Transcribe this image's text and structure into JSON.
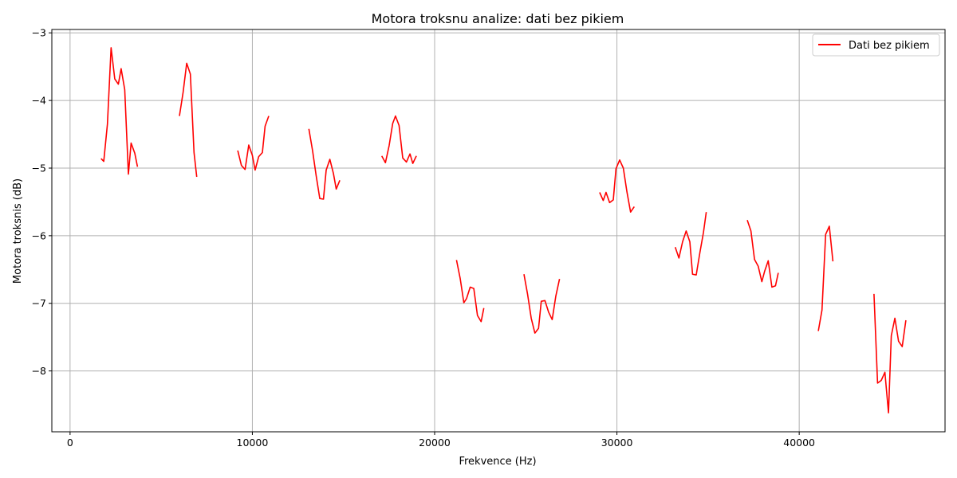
{
  "chart_data": {
    "type": "line",
    "title": "Motora troksnu analize: dati bez pikiem",
    "xlabel": "Frekvence (Hz)",
    "ylabel": "Motora troksnis (dB)",
    "xlim": [
      -1000,
      48000
    ],
    "ylim": [
      -8.9,
      -2.95
    ],
    "xticks": [
      0,
      10000,
      20000,
      30000,
      40000
    ],
    "xtick_labels": [
      "0",
      "10000",
      "20000",
      "30000",
      "40000"
    ],
    "yticks": [
      -8,
      -7,
      -6,
      -5,
      -4,
      -3
    ],
    "ytick_labels": [
      "−8",
      "−7",
      "−6",
      "−5",
      "−4",
      "−3"
    ],
    "grid": true,
    "legend": "top-right",
    "series": [
      {
        "name": "Dati bez pikiem",
        "color": "#ff0000",
        "segments": [
          [
            [
              1700,
              -4.86
            ],
            [
              1850,
              -4.9
            ],
            [
              2050,
              -4.35
            ],
            [
              2250,
              -3.22
            ],
            [
              2450,
              -3.68
            ],
            [
              2650,
              -3.76
            ],
            [
              2800,
              -3.53
            ],
            [
              3000,
              -3.84
            ],
            [
              3200,
              -5.09
            ],
            [
              3350,
              -4.63
            ],
            [
              3550,
              -4.78
            ],
            [
              3700,
              -4.98
            ]
          ],
          [
            [
              6000,
              -4.23
            ],
            [
              6200,
              -3.88
            ],
            [
              6400,
              -3.45
            ],
            [
              6600,
              -3.61
            ],
            [
              6800,
              -4.77
            ],
            [
              6950,
              -5.13
            ]
          ],
          [
            [
              9200,
              -4.74
            ],
            [
              9400,
              -4.96
            ],
            [
              9600,
              -5.02
            ],
            [
              9800,
              -4.66
            ],
            [
              10000,
              -4.81
            ],
            [
              10150,
              -5.03
            ],
            [
              10350,
              -4.83
            ],
            [
              10550,
              -4.77
            ],
            [
              10700,
              -4.38
            ],
            [
              10900,
              -4.23
            ]
          ],
          [
            [
              13100,
              -4.42
            ],
            [
              13300,
              -4.74
            ],
            [
              13500,
              -5.11
            ],
            [
              13700,
              -5.45
            ],
            [
              13900,
              -5.46
            ],
            [
              14050,
              -5.03
            ],
            [
              14250,
              -4.87
            ],
            [
              14450,
              -5.08
            ],
            [
              14600,
              -5.31
            ],
            [
              14800,
              -5.18
            ]
          ],
          [
            [
              17100,
              -4.82
            ],
            [
              17300,
              -4.92
            ],
            [
              17500,
              -4.67
            ],
            [
              17700,
              -4.34
            ],
            [
              17850,
              -4.23
            ],
            [
              18050,
              -4.37
            ],
            [
              18250,
              -4.85
            ],
            [
              18450,
              -4.91
            ],
            [
              18650,
              -4.79
            ],
            [
              18800,
              -4.93
            ],
            [
              19000,
              -4.82
            ]
          ],
          [
            [
              21200,
              -6.36
            ],
            [
              21400,
              -6.63
            ],
            [
              21600,
              -6.99
            ],
            [
              21750,
              -6.93
            ],
            [
              21950,
              -6.76
            ],
            [
              22150,
              -6.78
            ],
            [
              22350,
              -7.18
            ],
            [
              22550,
              -7.27
            ],
            [
              22700,
              -7.07
            ]
          ],
          [
            [
              24900,
              -6.57
            ],
            [
              25100,
              -6.87
            ],
            [
              25300,
              -7.22
            ],
            [
              25500,
              -7.44
            ],
            [
              25700,
              -7.37
            ],
            [
              25850,
              -6.97
            ],
            [
              26050,
              -6.96
            ],
            [
              26250,
              -7.13
            ],
            [
              26450,
              -7.24
            ],
            [
              26650,
              -6.89
            ],
            [
              26850,
              -6.64
            ]
          ],
          [
            [
              29050,
              -5.36
            ],
            [
              29250,
              -5.48
            ],
            [
              29400,
              -5.36
            ],
            [
              29600,
              -5.51
            ],
            [
              29800,
              -5.47
            ],
            [
              29950,
              -5.01
            ],
            [
              30150,
              -4.88
            ],
            [
              30350,
              -5.0
            ],
            [
              30550,
              -5.35
            ],
            [
              30750,
              -5.65
            ],
            [
              30950,
              -5.57
            ]
          ],
          [
            [
              33200,
              -6.17
            ],
            [
              33400,
              -6.33
            ],
            [
              33600,
              -6.09
            ],
            [
              33800,
              -5.93
            ],
            [
              34000,
              -6.09
            ],
            [
              34150,
              -6.57
            ],
            [
              34350,
              -6.58
            ],
            [
              34550,
              -6.25
            ],
            [
              34750,
              -5.95
            ],
            [
              34900,
              -5.65
            ]
          ],
          [
            [
              37150,
              -5.77
            ],
            [
              37350,
              -5.93
            ],
            [
              37550,
              -6.35
            ],
            [
              37750,
              -6.45
            ],
            [
              37950,
              -6.68
            ],
            [
              38100,
              -6.53
            ],
            [
              38300,
              -6.37
            ],
            [
              38500,
              -6.76
            ],
            [
              38700,
              -6.74
            ],
            [
              38850,
              -6.55
            ]
          ],
          [
            [
              41050,
              -7.41
            ],
            [
              41250,
              -7.1
            ],
            [
              41450,
              -5.98
            ],
            [
              41650,
              -5.86
            ],
            [
              41850,
              -6.38
            ]
          ],
          [
            [
              44100,
              -6.86
            ],
            [
              44300,
              -8.18
            ],
            [
              44500,
              -8.14
            ],
            [
              44700,
              -8.02
            ],
            [
              44900,
              -8.62
            ],
            [
              45050,
              -7.48
            ],
            [
              45250,
              -7.22
            ],
            [
              45450,
              -7.56
            ],
            [
              45650,
              -7.64
            ],
            [
              45850,
              -7.25
            ]
          ]
        ]
      }
    ]
  }
}
